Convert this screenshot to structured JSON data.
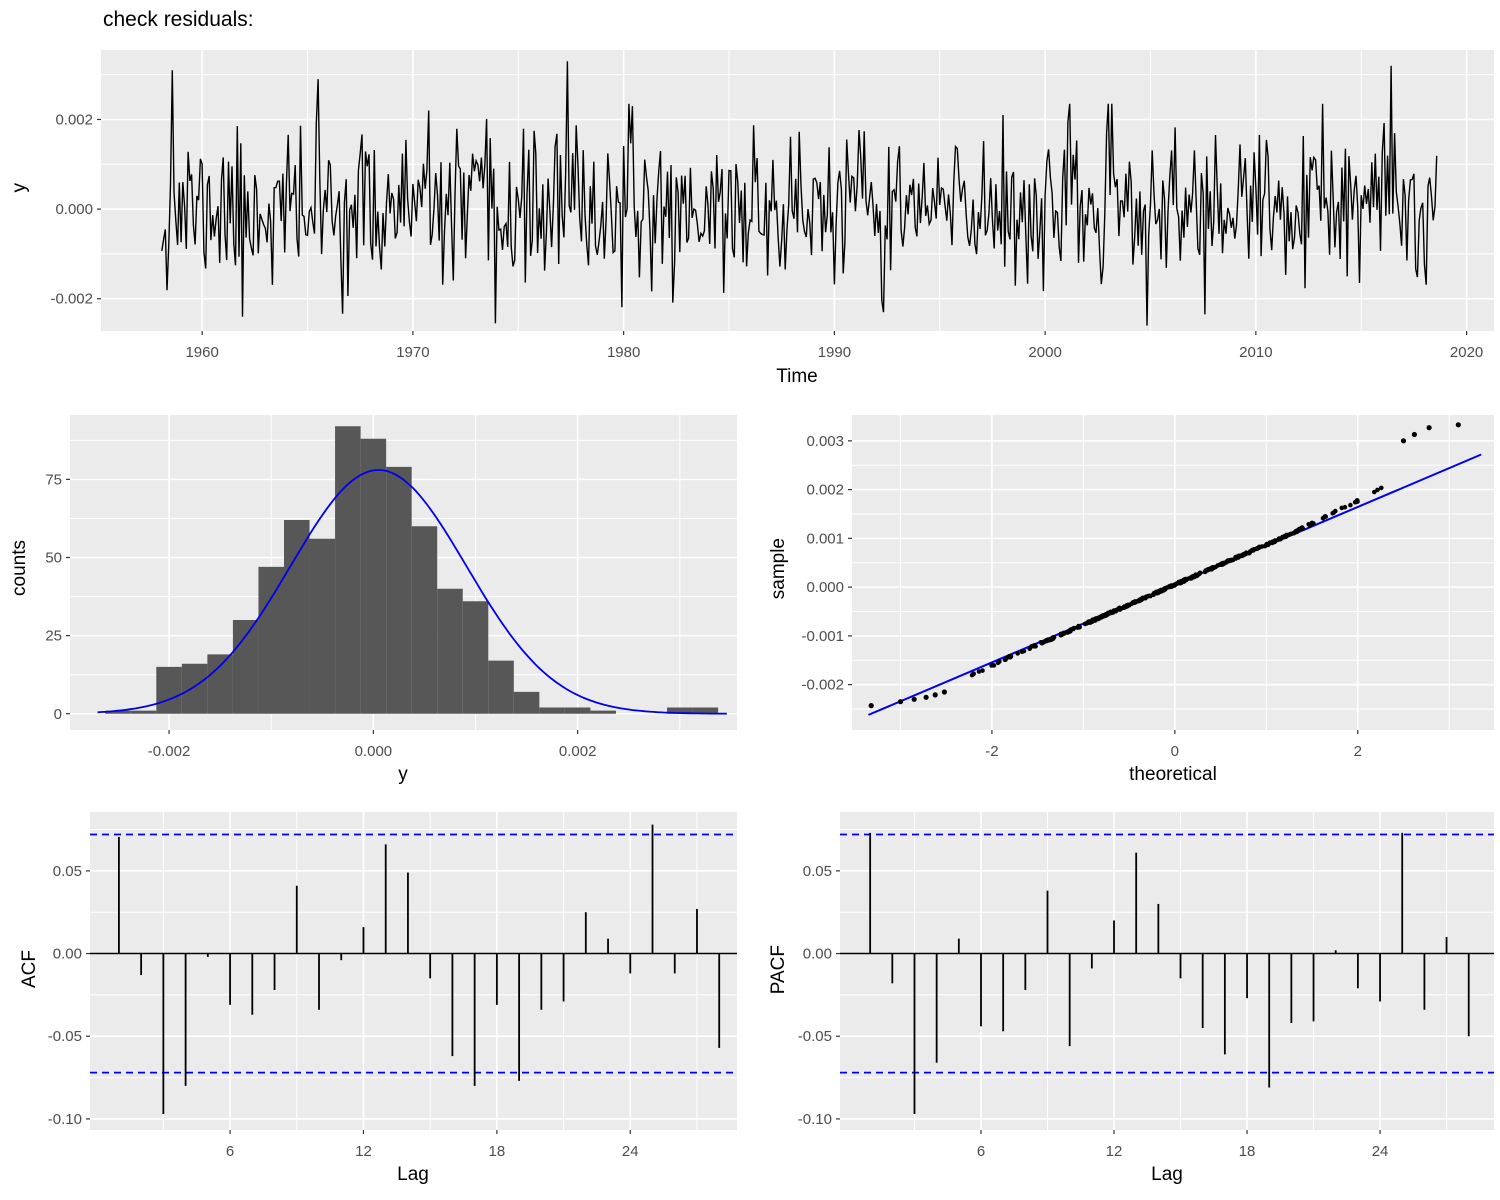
{
  "title": "check residuals:",
  "colors": {
    "panel_bg": "#EBEBEB",
    "grid_major": "#FFFFFF",
    "grid_minor": "#FFFFFF",
    "series_line": "#000000",
    "blue_line": "#0000EE",
    "bar_fill": "#575757",
    "axis_text": "#4D4D4D",
    "axis_title": "#000000",
    "tick_mark": "#333333"
  },
  "chart_data": [
    {
      "type": "line",
      "name": "residuals-time-series",
      "xlabel": "Time",
      "ylabel": "y",
      "xlim": [
        1955.2,
        2021.3
      ],
      "ylim": [
        -0.00272,
        0.00355
      ],
      "xticks": [
        1960,
        1970,
        1980,
        1990,
        2000,
        2010,
        2020
      ],
      "xtick_labels": [
        "1960",
        "1970",
        "1980",
        "1990",
        "2000",
        "2010",
        "2020"
      ],
      "x_minor": [
        1965,
        1975,
        1985,
        1995,
        2005,
        2015
      ],
      "yticks": [
        -0.002,
        0.0,
        0.002
      ],
      "ytick_labels": [
        "-0.002",
        "0.000",
        "0.002"
      ],
      "y_minor": [
        -0.001,
        0.001,
        0.003
      ],
      "grid": true,
      "generator": {
        "note": "dense monthly residual noise read from pixels; regenerated deterministically",
        "start": 1958.083,
        "step": 0.0833333,
        "points": 727,
        "mean": 0,
        "sd": 0.00082,
        "clamp": 0.00235,
        "seed": 11,
        "extremes": [
          {
            "x": 1958.6,
            "y": 0.0031
          },
          {
            "x": 1961.9,
            "y": -0.0024
          },
          {
            "x": 1965.5,
            "y": 0.0029
          },
          {
            "x": 1973.9,
            "y": -0.00255
          },
          {
            "x": 1977.3,
            "y": 0.0033
          },
          {
            "x": 1992.3,
            "y": -0.0023
          },
          {
            "x": 1998.0,
            "y": 0.0021
          },
          {
            "x": 2004.8,
            "y": -0.0026
          },
          {
            "x": 2016.4,
            "y": 0.0032
          }
        ]
      }
    },
    {
      "type": "histogram",
      "name": "residuals-histogram",
      "xlabel": "y",
      "ylabel": "counts",
      "xlim": [
        -0.00297,
        0.00356
      ],
      "ylim": [
        -5.2,
        95.6
      ],
      "xticks": [
        -0.002,
        0.0,
        0.002
      ],
      "xtick_labels": [
        "-0.002",
        "0.000",
        "0.002"
      ],
      "x_minor": [
        -0.001,
        0.001,
        0.003
      ],
      "yticks": [
        0,
        25,
        50,
        75
      ],
      "ytick_labels": [
        "0",
        "25",
        "50",
        "75"
      ],
      "y_minor": [
        12.5,
        37.5,
        62.5,
        87.5
      ],
      "grid": true,
      "bin_width": 0.00025,
      "bin_centers": [
        -0.0025,
        -0.00225,
        -0.002,
        -0.00175,
        -0.0015,
        -0.00125,
        -0.001,
        -0.00075,
        -0.0005,
        -0.00025,
        0.0,
        0.00025,
        0.0005,
        0.00075,
        0.001,
        0.00125,
        0.0015,
        0.00175,
        0.002,
        0.00225,
        0.0025,
        0.00275,
        0.003,
        0.00325
      ],
      "counts": [
        1,
        1,
        15,
        16,
        19,
        30,
        47,
        62,
        56,
        92,
        88,
        79,
        60,
        40,
        36,
        17,
        7,
        2,
        2,
        1,
        0,
        0,
        2,
        2
      ],
      "normal_curve": {
        "peak": 78,
        "mean": 5e-05,
        "sd": 0.00086
      }
    },
    {
      "type": "qq",
      "name": "qq-plot",
      "xlabel": "theoretical",
      "ylabel": "sample",
      "xlim": [
        -3.53,
        3.49
      ],
      "ylim": [
        -0.00293,
        0.00353
      ],
      "xticks": [
        -2,
        0,
        2
      ],
      "xtick_labels": [
        "-2",
        "0",
        "2"
      ],
      "x_minor": [
        -3,
        -1,
        1,
        3
      ],
      "yticks": [
        -0.002,
        -0.001,
        0.0,
        0.001,
        0.002,
        0.003
      ],
      "ytick_labels": [
        "-0.002",
        "-0.001",
        "0.000",
        "0.001",
        "0.002",
        "0.003"
      ],
      "y_minor": [
        -0.0025,
        -0.0015,
        -0.0005,
        0.0005,
        0.0015,
        0.0025
      ],
      "grid": true,
      "n_points": 400,
      "slope": 0.00082,
      "intercept": 5e-05,
      "seed": 5,
      "line": {
        "x1": -3.35,
        "y1": -0.00262,
        "x2": 3.35,
        "y2": 0.00272
      },
      "upper_outliers": [
        [
          2.5,
          0.003
        ],
        [
          2.62,
          0.00313
        ],
        [
          2.78,
          0.00327
        ],
        [
          3.1,
          0.00333
        ]
      ],
      "lower_outliers": [
        [
          -3.32,
          -0.00243
        ],
        [
          -3.0,
          -0.00235
        ],
        [
          -2.85,
          -0.0023
        ],
        [
          -2.72,
          -0.00226
        ],
        [
          -2.62,
          -0.00221
        ],
        [
          -2.52,
          -0.00215
        ]
      ]
    },
    {
      "type": "acf",
      "name": "acf-plot",
      "xlabel": "Lag",
      "ylabel": "ACF",
      "xlim": [
        -0.3,
        28.8
      ],
      "ylim": [
        -0.1067,
        0.0856
      ],
      "xticks": [
        6,
        12,
        18,
        24
      ],
      "xtick_labels": [
        "6",
        "12",
        "18",
        "24"
      ],
      "x_minor": [
        3,
        9,
        15,
        21,
        27
      ],
      "yticks": [
        -0.1,
        -0.05,
        0.0,
        0.05
      ],
      "ytick_labels": [
        "-0.10",
        "-0.05",
        "0.00",
        "0.05"
      ],
      "y_minor": [
        -0.075,
        -0.025,
        0.025,
        0.075
      ],
      "grid": true,
      "conf_band": 0.072,
      "lags": [
        1,
        2,
        3,
        4,
        5,
        6,
        7,
        8,
        9,
        10,
        11,
        12,
        13,
        14,
        15,
        16,
        17,
        18,
        19,
        20,
        21,
        22,
        23,
        24,
        25,
        26,
        27,
        28
      ],
      "values": [
        0.0705,
        -0.013,
        -0.097,
        -0.08,
        -0.002,
        -0.031,
        -0.037,
        -0.022,
        0.041,
        -0.034,
        -0.004,
        0.016,
        0.066,
        0.049,
        -0.015,
        -0.062,
        -0.08,
        -0.031,
        -0.077,
        -0.034,
        -0.029,
        0.025,
        0.009,
        -0.012,
        0.078,
        -0.012,
        0.027,
        -0.057
      ]
    },
    {
      "type": "acf",
      "name": "pacf-plot",
      "xlabel": "Lag",
      "ylabel": "PACF",
      "xlim": [
        -0.36,
        29.14
      ],
      "ylim": [
        -0.1067,
        0.0856
      ],
      "xticks": [
        6,
        12,
        18,
        24
      ],
      "xtick_labels": [
        "6",
        "12",
        "18",
        "24"
      ],
      "x_minor": [
        3,
        9,
        15,
        21,
        27
      ],
      "yticks": [
        -0.1,
        -0.05,
        0.0,
        0.05
      ],
      "ytick_labels": [
        "-0.10",
        "-0.05",
        "0.00",
        "0.05"
      ],
      "y_minor": [
        -0.075,
        -0.025,
        0.025,
        0.075
      ],
      "grid": true,
      "conf_band": 0.072,
      "lags": [
        1,
        2,
        3,
        4,
        5,
        6,
        7,
        8,
        9,
        10,
        11,
        12,
        13,
        14,
        15,
        16,
        17,
        18,
        19,
        20,
        21,
        22,
        23,
        24,
        25,
        26,
        27,
        28
      ],
      "values": [
        0.073,
        -0.018,
        -0.097,
        -0.066,
        0.009,
        -0.044,
        -0.047,
        -0.022,
        0.038,
        -0.056,
        -0.009,
        0.02,
        0.061,
        0.03,
        -0.015,
        -0.045,
        -0.061,
        -0.027,
        -0.081,
        -0.042,
        -0.041,
        0.002,
        -0.021,
        -0.029,
        0.073,
        -0.034,
        0.01,
        -0.05
      ]
    }
  ]
}
